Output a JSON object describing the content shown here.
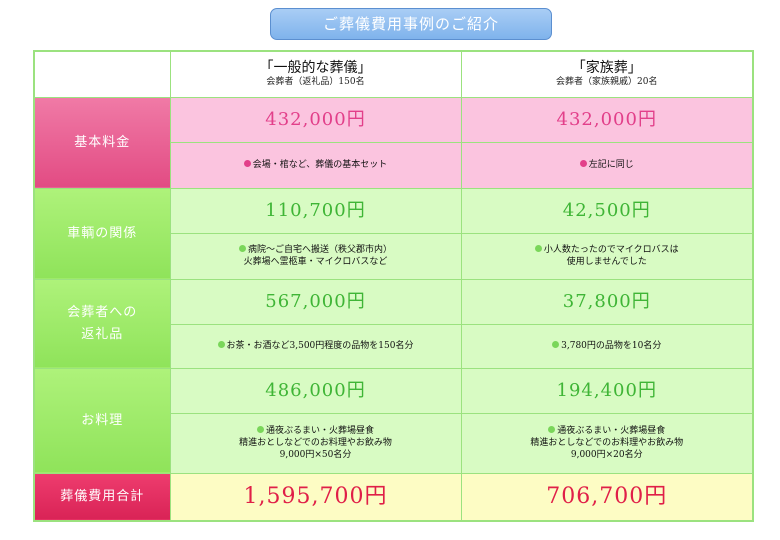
{
  "title": "ご葬儀費用事例のご紹介",
  "columns": [
    {
      "title": "「一般的な葬儀」",
      "sub": "会葬者（返礼品）150名"
    },
    {
      "title": "「家族葬」",
      "sub": "会葬者（家族親戚）20名"
    }
  ],
  "rows": {
    "basic": {
      "label": "基本料金",
      "amounts": [
        "432,000円",
        "432,000円"
      ],
      "notes": [
        [
          "会場・棺など、葬儀の基本セット"
        ],
        [
          "左記に同じ"
        ]
      ]
    },
    "vehicle": {
      "label": "車輌の関係",
      "amounts": [
        "110,700円",
        "42,500円"
      ],
      "notes": [
        [
          "病院～ご自宅へ搬送（秩父郡市内）",
          "火葬場へ霊柩車・マイクロバスなど"
        ],
        [
          "小人数たったのでマイクロバスは",
          "使用しませんでした"
        ]
      ]
    },
    "gift": {
      "label_lines": [
        "会葬者への",
        "返礼品"
      ],
      "amounts": [
        "567,000円",
        "37,800円"
      ],
      "notes": [
        [
          "お茶・お酒など3,500円程度の品物を150名分"
        ],
        [
          "3,780円の品物を10名分"
        ]
      ]
    },
    "food": {
      "label": "お料理",
      "amounts": [
        "486,000円",
        "194,400円"
      ],
      "notes": [
        [
          "通夜ぶるまい・火葬場昼食",
          "精進おとしなどでのお料理やお飲み物",
          "9,000円×50名分"
        ],
        [
          "通夜ぶるまい・火葬場昼食",
          "精進おとしなどでのお料理やお飲み物",
          "9,000円×20名分"
        ]
      ]
    },
    "total": {
      "label": "葬儀費用合計",
      "amounts": [
        "1,595,700円",
        "706,700円"
      ]
    }
  },
  "colors": {
    "pink_accent": "#e23f8a",
    "green_accent": "#3fb536",
    "total_accent": "#e01f48",
    "border": "#9be27f"
  }
}
